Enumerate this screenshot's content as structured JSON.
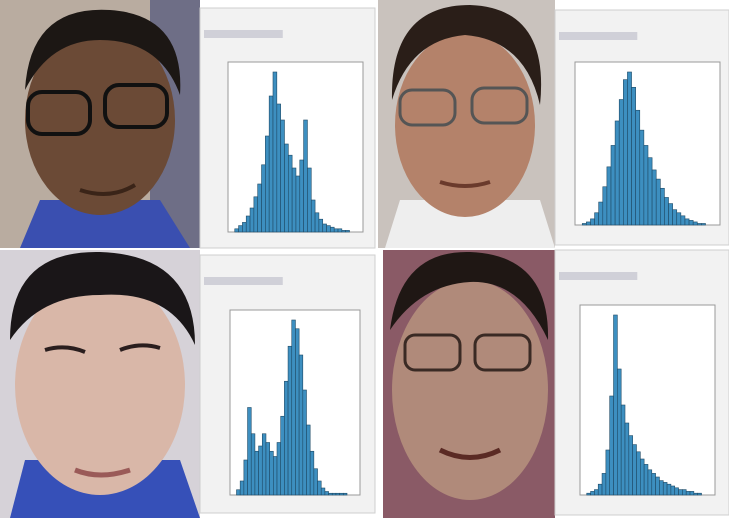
{
  "histograms": [
    {
      "color": "#3d8fc0",
      "values": [
        2,
        4,
        6,
        10,
        15,
        22,
        30,
        42,
        60,
        85,
        100,
        80,
        70,
        55,
        48,
        40,
        35,
        45,
        70,
        40,
        20,
        12,
        8,
        5,
        4,
        3,
        2,
        2,
        1,
        1
      ]
    },
    {
      "color": "#3d8fc0",
      "values": [
        1,
        2,
        4,
        8,
        15,
        25,
        38,
        52,
        68,
        82,
        95,
        100,
        90,
        75,
        62,
        52,
        44,
        36,
        30,
        24,
        18,
        14,
        10,
        8,
        6,
        4,
        3,
        2,
        1,
        1
      ]
    },
    {
      "color": "#3d8fc0",
      "values": [
        3,
        8,
        20,
        50,
        35,
        25,
        28,
        35,
        30,
        25,
        22,
        30,
        45,
        65,
        85,
        100,
        95,
        80,
        60,
        40,
        25,
        15,
        8,
        4,
        2,
        1,
        1,
        1,
        1,
        1
      ]
    },
    {
      "color": "#3d8fc0",
      "values": [
        1,
        2,
        3,
        6,
        12,
        25,
        55,
        100,
        70,
        50,
        40,
        33,
        28,
        24,
        20,
        17,
        14,
        12,
        10,
        8,
        7,
        6,
        5,
        4,
        3,
        3,
        2,
        2,
        1,
        1
      ]
    }
  ]
}
